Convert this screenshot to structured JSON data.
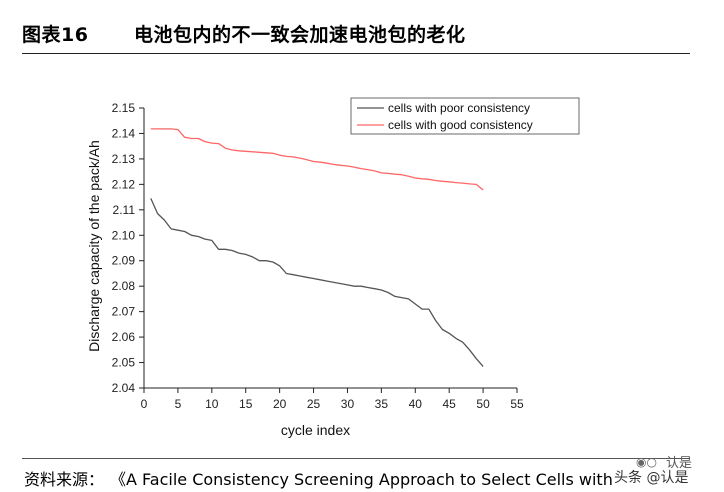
{
  "header": {
    "figure_label": "图表16",
    "figure_title": "电池包内的不一致会加速电池包的老化"
  },
  "footer": {
    "source_label": "资料来源：",
    "source_text": "《A Facile Consistency Screening Approach to Select Cells with"
  },
  "watermark": {
    "icon": "wechat-icon",
    "line1": "认是",
    "line2": "头条 @认是"
  },
  "chart_data": {
    "type": "line",
    "title": "",
    "xlabel": "cycle index",
    "ylabel": "Discharge capacity of the pack/Ah",
    "xlim": [
      0,
      55
    ],
    "ylim": [
      2.04,
      2.15
    ],
    "x_ticks": [
      0,
      5,
      10,
      15,
      20,
      25,
      30,
      35,
      40,
      45,
      50,
      55
    ],
    "y_ticks": [
      2.04,
      2.05,
      2.06,
      2.07,
      2.08,
      2.09,
      2.1,
      2.11,
      2.12,
      2.13,
      2.14,
      2.15
    ],
    "y_tick_labels": [
      "2.04",
      "2.05",
      "2.06",
      "2.07",
      "2.08",
      "2.09",
      "2.10",
      "2.11",
      "2.12",
      "2.13",
      "2.14",
      "2.15"
    ],
    "grid": false,
    "legend_position": "top-right",
    "series": [
      {
        "name": "cells with poor consistency",
        "color": "#555555",
        "x": [
          1,
          2,
          3,
          4,
          5,
          6,
          7,
          8,
          9,
          10,
          11,
          12,
          13,
          14,
          15,
          16,
          17,
          18,
          19,
          20,
          21,
          22,
          23,
          24,
          25,
          26,
          27,
          28,
          29,
          30,
          31,
          32,
          33,
          34,
          35,
          36,
          37,
          38,
          39,
          40,
          41,
          42,
          43,
          44,
          45,
          46,
          47,
          48,
          49,
          50
        ],
        "y": [
          2.1145,
          2.1085,
          2.106,
          2.1025,
          2.102,
          2.1015,
          2.1,
          2.0995,
          2.0985,
          2.098,
          2.0945,
          2.0945,
          2.094,
          2.093,
          2.0925,
          2.0915,
          2.09,
          2.09,
          2.0895,
          2.088,
          2.085,
          2.0845,
          2.084,
          2.0835,
          2.083,
          2.0825,
          2.082,
          2.0815,
          2.081,
          2.0805,
          2.08,
          2.08,
          2.0795,
          2.079,
          2.0785,
          2.0775,
          2.076,
          2.0755,
          2.075,
          2.073,
          2.071,
          2.071,
          2.0665,
          2.063,
          2.0615,
          2.0595,
          2.058,
          2.055,
          2.0515,
          2.0485
        ]
      },
      {
        "name": "cells with good consistency",
        "color": "#ff6666",
        "x": [
          1,
          2,
          3,
          4,
          5,
          6,
          7,
          8,
          9,
          10,
          11,
          12,
          13,
          14,
          15,
          16,
          17,
          18,
          19,
          20,
          21,
          22,
          23,
          24,
          25,
          26,
          27,
          28,
          29,
          30,
          31,
          32,
          33,
          34,
          35,
          36,
          37,
          38,
          39,
          40,
          41,
          42,
          43,
          44,
          45,
          46,
          47,
          48,
          49,
          50
        ],
        "y": [
          2.1418,
          2.1418,
          2.1418,
          2.1418,
          2.1415,
          2.1385,
          2.138,
          2.138,
          2.1368,
          2.1362,
          2.136,
          2.1342,
          2.1335,
          2.1332,
          2.133,
          2.1328,
          2.1326,
          2.1324,
          2.1322,
          2.1315,
          2.131,
          2.1308,
          2.1303,
          2.1297,
          2.129,
          2.1287,
          2.1283,
          2.1278,
          2.1275,
          2.1272,
          2.1268,
          2.1262,
          2.1258,
          2.1253,
          2.1245,
          2.1243,
          2.124,
          2.1238,
          2.1232,
          2.1225,
          2.1222,
          2.122,
          2.1215,
          2.1212,
          2.121,
          2.1207,
          2.1205,
          2.1202,
          2.12,
          2.1178
        ]
      }
    ]
  }
}
